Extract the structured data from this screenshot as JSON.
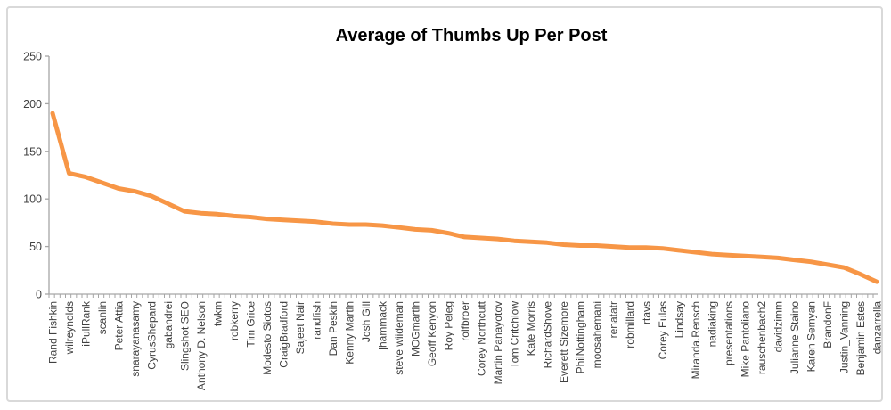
{
  "chart_data": {
    "type": "line",
    "title": "Average of Thumbs Up Per Post",
    "xlabel": "",
    "ylabel": "",
    "ylim": [
      0,
      250
    ],
    "yticks": [
      0,
      50,
      100,
      150,
      200,
      250
    ],
    "grid": false,
    "legend": "none",
    "x_label_note": "category labels shown every 3rd point in source chart",
    "minor_ticks_per_label": 3,
    "categories": [
      "Rand Fishkin",
      "wilreynolds",
      "iPullRank",
      "scanlin",
      "Peter Attia",
      "snarayanasamy",
      "CyrusShepard",
      "gabandrei",
      "Slingshot SEO",
      "Anthony D. Nelson",
      "twkm",
      "robkerry",
      "Tim Grice",
      "Modesto Siotos",
      "CraigBradford",
      "Sajeet Nair",
      "randfish",
      "Dan Peskin",
      "Kenny Martin",
      "Josh Gill",
      "jhammack",
      "steve wiideman",
      "MOGmartin",
      "Geoff Kenyon",
      "Roy Peleg",
      "rolfbroer",
      "Corey Northcutt",
      "Martin Panayotov",
      "Tom Critchlow",
      "Kate Morris",
      "RichardShove",
      "Everett Sizemore",
      "PhilNottingham",
      "moosahemani",
      "renatatr",
      "robmillard",
      "rtavs",
      "Corey Eulas",
      "Lindsay",
      "Miranda.Rensch",
      "nadiaking",
      "presentations",
      "Mike Pantoliano",
      "rauschenbach2",
      "davidzimm",
      "Julianne Staino",
      "Karen Semyan",
      "BrandonF",
      "Justin_Vanning",
      "Benjamin Estes",
      "danzarrella"
    ],
    "values": [
      190,
      127,
      123,
      117,
      111,
      108,
      103,
      95,
      87,
      85,
      84,
      82,
      81,
      79,
      78,
      77,
      76,
      74,
      73,
      73,
      72,
      70,
      68,
      67,
      64,
      60,
      59,
      58,
      56,
      55,
      54,
      52,
      51,
      51,
      50,
      49,
      49,
      48,
      46,
      44,
      42,
      41,
      40,
      39,
      38,
      36,
      34,
      31,
      28,
      21,
      13
    ],
    "colors": {
      "series": "#F79646",
      "axis": "#A6A6A6",
      "tick_text": "#404040",
      "title_text": "#000000",
      "frame_border": "#D9D9D9"
    }
  }
}
